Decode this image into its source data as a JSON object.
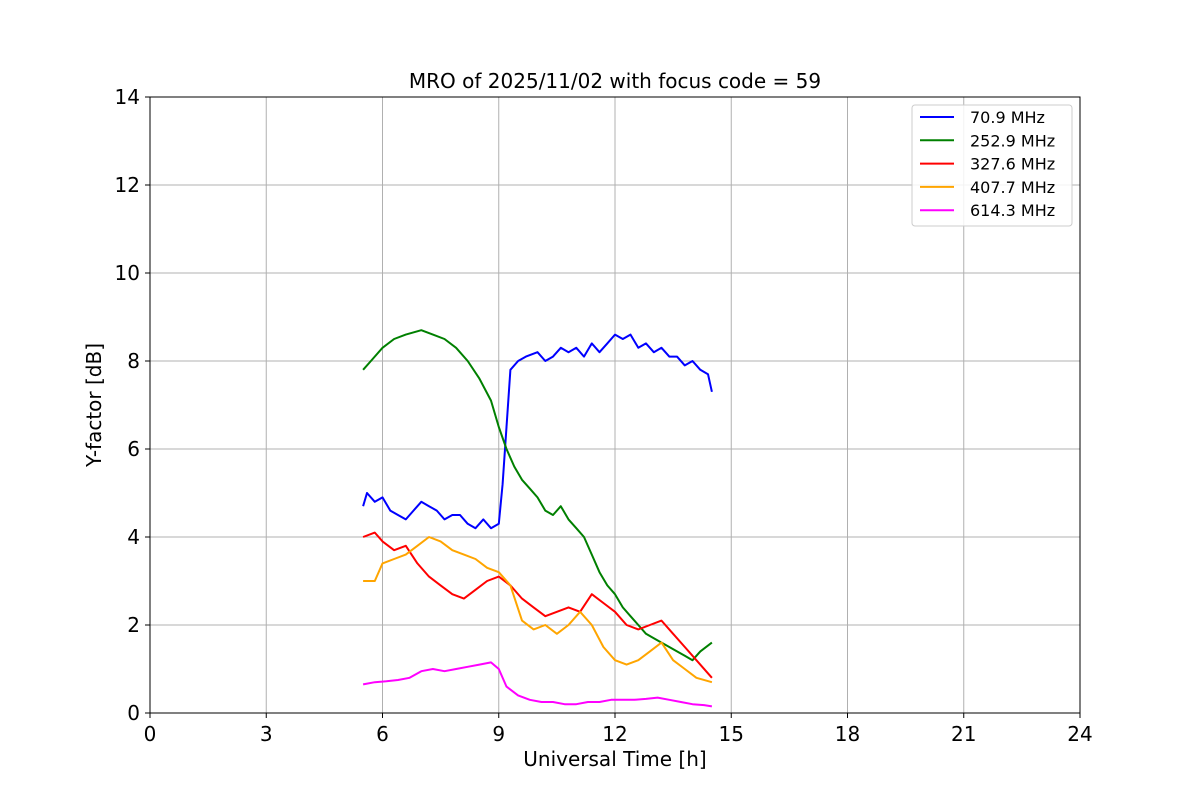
{
  "chart_data": {
    "type": "line",
    "title": "MRO of 2025/11/02 with focus code = 59",
    "xlabel": "Universal Time [h]",
    "ylabel": "Y-factor [dB]",
    "xlim": [
      0,
      24
    ],
    "ylim": [
      0,
      14
    ],
    "xticks": [
      0,
      3,
      6,
      9,
      12,
      15,
      18,
      21,
      24
    ],
    "yticks": [
      0,
      2,
      4,
      6,
      8,
      10,
      12,
      14
    ],
    "grid": true,
    "legend_position": "top-right",
    "series": [
      {
        "name": " 70.9 MHz",
        "color": "#0000ff",
        "x": [
          5.5,
          5.6,
          5.8,
          6.0,
          6.2,
          6.4,
          6.6,
          6.8,
          7.0,
          7.2,
          7.4,
          7.6,
          7.8,
          8.0,
          8.2,
          8.4,
          8.6,
          8.8,
          9.0,
          9.1,
          9.2,
          9.3,
          9.5,
          9.7,
          10.0,
          10.2,
          10.4,
          10.6,
          10.8,
          11.0,
          11.2,
          11.4,
          11.6,
          11.8,
          12.0,
          12.2,
          12.4,
          12.6,
          12.8,
          13.0,
          13.2,
          13.4,
          13.6,
          13.8,
          14.0,
          14.2,
          14.4,
          14.5
        ],
        "y": [
          4.7,
          5.0,
          4.8,
          4.9,
          4.6,
          4.5,
          4.4,
          4.6,
          4.8,
          4.7,
          4.6,
          4.4,
          4.5,
          4.5,
          4.3,
          4.2,
          4.4,
          4.2,
          4.3,
          5.2,
          6.5,
          7.8,
          8.0,
          8.1,
          8.2,
          8.0,
          8.1,
          8.3,
          8.2,
          8.3,
          8.1,
          8.4,
          8.2,
          8.4,
          8.6,
          8.5,
          8.6,
          8.3,
          8.4,
          8.2,
          8.3,
          8.1,
          8.1,
          7.9,
          8.0,
          7.8,
          7.7,
          7.3
        ]
      },
      {
        "name": "252.9 MHz",
        "color": "#008000",
        "x": [
          5.5,
          5.7,
          6.0,
          6.3,
          6.6,
          7.0,
          7.3,
          7.6,
          7.9,
          8.2,
          8.5,
          8.8,
          9.0,
          9.2,
          9.4,
          9.6,
          9.8,
          10.0,
          10.2,
          10.4,
          10.6,
          10.8,
          11.0,
          11.2,
          11.4,
          11.6,
          11.8,
          12.0,
          12.2,
          12.4,
          12.6,
          12.8,
          13.0,
          13.2,
          13.4,
          13.6,
          13.8,
          14.0,
          14.2,
          14.5
        ],
        "y": [
          7.8,
          8.0,
          8.3,
          8.5,
          8.6,
          8.7,
          8.6,
          8.5,
          8.3,
          8.0,
          7.6,
          7.1,
          6.5,
          6.0,
          5.6,
          5.3,
          5.1,
          4.9,
          4.6,
          4.5,
          4.7,
          4.4,
          4.2,
          4.0,
          3.6,
          3.2,
          2.9,
          2.7,
          2.4,
          2.2,
          2.0,
          1.8,
          1.7,
          1.6,
          1.5,
          1.4,
          1.3,
          1.2,
          1.4,
          1.6
        ]
      },
      {
        "name": "327.6 MHz",
        "color": "#ff0000",
        "x": [
          5.5,
          5.8,
          6.0,
          6.3,
          6.6,
          6.9,
          7.2,
          7.5,
          7.8,
          8.1,
          8.4,
          8.7,
          9.0,
          9.3,
          9.6,
          9.9,
          10.2,
          10.5,
          10.8,
          11.1,
          11.4,
          11.7,
          12.0,
          12.3,
          12.6,
          12.9,
          13.2,
          13.5,
          13.8,
          14.1,
          14.5
        ],
        "y": [
          4.0,
          4.1,
          3.9,
          3.7,
          3.8,
          3.4,
          3.1,
          2.9,
          2.7,
          2.6,
          2.8,
          3.0,
          3.1,
          2.9,
          2.6,
          2.4,
          2.2,
          2.3,
          2.4,
          2.3,
          2.7,
          2.5,
          2.3,
          2.0,
          1.9,
          2.0,
          2.1,
          1.8,
          1.5,
          1.2,
          0.8
        ]
      },
      {
        "name": "407.7 MHz",
        "color": "#ffa500",
        "x": [
          5.5,
          5.8,
          6.0,
          6.3,
          6.6,
          6.9,
          7.2,
          7.5,
          7.8,
          8.1,
          8.4,
          8.7,
          9.0,
          9.3,
          9.6,
          9.9,
          10.2,
          10.5,
          10.8,
          11.1,
          11.4,
          11.7,
          12.0,
          12.3,
          12.6,
          12.9,
          13.2,
          13.5,
          13.8,
          14.1,
          14.5
        ],
        "y": [
          3.0,
          3.0,
          3.4,
          3.5,
          3.6,
          3.8,
          4.0,
          3.9,
          3.7,
          3.6,
          3.5,
          3.3,
          3.2,
          2.9,
          2.1,
          1.9,
          2.0,
          1.8,
          2.0,
          2.3,
          2.0,
          1.5,
          1.2,
          1.1,
          1.2,
          1.4,
          1.6,
          1.2,
          1.0,
          0.8,
          0.7
        ]
      },
      {
        "name": "614.3 MHz",
        "color": "#ff00ff",
        "x": [
          5.5,
          5.8,
          6.1,
          6.4,
          6.7,
          7.0,
          7.3,
          7.6,
          7.9,
          8.2,
          8.5,
          8.8,
          9.0,
          9.2,
          9.5,
          9.8,
          10.1,
          10.4,
          10.7,
          11.0,
          11.3,
          11.6,
          11.9,
          12.2,
          12.5,
          12.8,
          13.1,
          13.4,
          13.7,
          14.0,
          14.3,
          14.5
        ],
        "y": [
          0.65,
          0.7,
          0.72,
          0.75,
          0.8,
          0.95,
          1.0,
          0.95,
          1.0,
          1.05,
          1.1,
          1.15,
          1.0,
          0.6,
          0.4,
          0.3,
          0.25,
          0.25,
          0.2,
          0.2,
          0.25,
          0.25,
          0.3,
          0.3,
          0.3,
          0.32,
          0.35,
          0.3,
          0.25,
          0.2,
          0.18,
          0.15
        ]
      }
    ]
  }
}
